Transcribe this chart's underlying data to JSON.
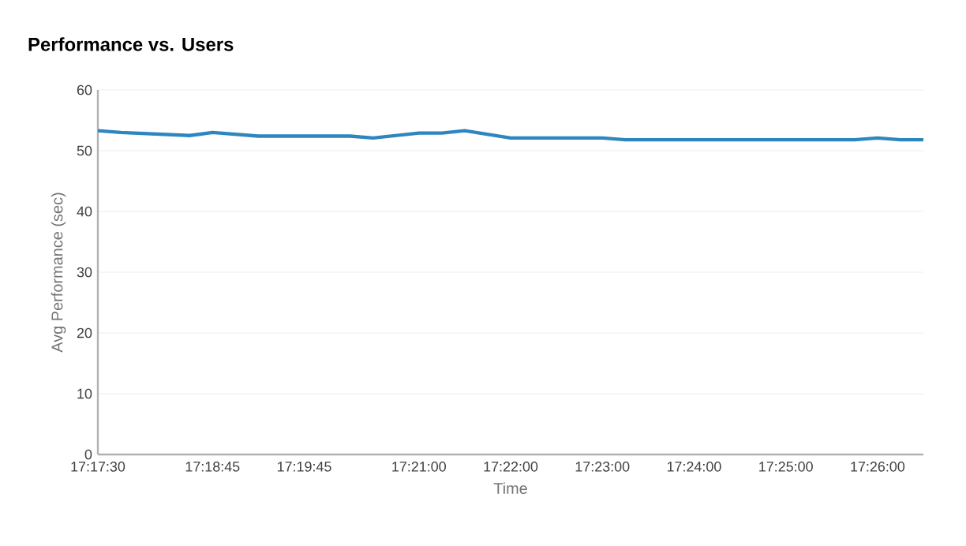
{
  "chart_data": {
    "type": "line",
    "title": "Performance vs. Users",
    "xlabel": "Time",
    "ylabel": "Avg Performance (sec)",
    "x": [
      17.291667,
      17.295833,
      17.308333,
      17.3125,
      17.320833,
      17.3375,
      17.341667,
      17.35,
      17.354167,
      17.358333,
      17.366667,
      17.383333,
      17.3875,
      17.429167,
      17.433333,
      17.4375,
      17.441667
    ],
    "series": [
      {
        "color": "#2e86c1",
        "values": [
          53.3,
          53.0,
          52.5,
          53.0,
          52.4,
          52.4,
          52.1,
          52.9,
          52.9,
          53.3,
          52.1,
          52.1,
          51.8,
          51.8,
          52.1,
          51.8,
          51.8
        ]
      }
    ],
    "xlim": [
      17.291667,
      17.441667
    ],
    "xticks": [
      {
        "value": 17.291667,
        "label": "17:17:30"
      },
      {
        "value": 17.3125,
        "label": "17:18:45"
      },
      {
        "value": 17.329167,
        "label": "17:19:45"
      },
      {
        "value": 17.35,
        "label": "17:21:00"
      },
      {
        "value": 17.366667,
        "label": "17:22:00"
      },
      {
        "value": 17.383333,
        "label": "17:23:00"
      },
      {
        "value": 17.4,
        "label": "17:24:00"
      },
      {
        "value": 17.416667,
        "label": "17:25:00"
      },
      {
        "value": 17.433333,
        "label": "17:26:00"
      }
    ],
    "ylim": [
      0,
      60
    ],
    "yticks": [
      0,
      10,
      20,
      30,
      40,
      50,
      60
    ],
    "grid": "y",
    "marker": "none",
    "line_style": "solid"
  }
}
